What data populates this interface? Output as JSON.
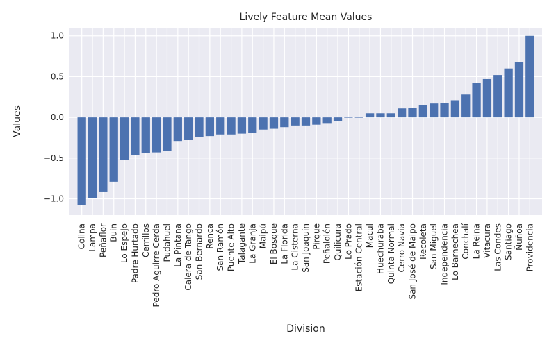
{
  "chart_data": {
    "type": "bar",
    "title": "Lively Feature Mean Values",
    "xlabel": "Division",
    "ylabel": "Values",
    "ylim": [
      -1.2,
      1.1
    ],
    "yticks": [
      -1.0,
      -0.5,
      0.0,
      0.5,
      1.0
    ],
    "ytick_labels": [
      "−1.0",
      "−0.5",
      "0.0",
      "0.5",
      "1.0"
    ],
    "grid": true,
    "colors": {
      "bar": "#4c72b0",
      "plot_bg": "#eaeaf2",
      "grid": "#ffffff",
      "text": "#262626"
    },
    "categories": [
      "Colina",
      "Lampa",
      "Peñaflor",
      "Buin",
      "Lo Espejo",
      "Padre Hurtado",
      "Cerrillos",
      "Pedro Aguirre Cerda",
      "Pudahuel",
      "La Pintana",
      "Calera de Tango",
      "San Bernardo",
      "Renca",
      "San Ramón",
      "Puente Alto",
      "Talagante",
      "La Granja",
      "Maipú",
      "El Bosque",
      "La Florida",
      "La Cisterna",
      "San Joaquín",
      "Pirque",
      "Peñalolén",
      "Quilicura",
      "Lo Prado",
      "Estación Central",
      "Macul",
      "Huechuraba",
      "Quinta Normal",
      "Cerro Navia",
      "San José de Maipo",
      "Recoleta",
      "San Miguel",
      "Independencia",
      "Lo Barnechea",
      "Conchalí",
      "La Reina",
      "Vitacura",
      "Las Condes",
      "Santiago",
      "Ñuñoa",
      "Providencia"
    ],
    "values": [
      -1.08,
      -0.99,
      -0.91,
      -0.79,
      -0.52,
      -0.46,
      -0.44,
      -0.43,
      -0.41,
      -0.29,
      -0.28,
      -0.24,
      -0.23,
      -0.21,
      -0.21,
      -0.2,
      -0.19,
      -0.15,
      -0.14,
      -0.12,
      -0.1,
      -0.1,
      -0.09,
      -0.07,
      -0.05,
      -0.005,
      -0.005,
      0.05,
      0.05,
      0.05,
      0.11,
      0.12,
      0.15,
      0.17,
      0.18,
      0.21,
      0.28,
      0.42,
      0.47,
      0.52,
      0.6,
      0.68,
      1.0
    ]
  }
}
